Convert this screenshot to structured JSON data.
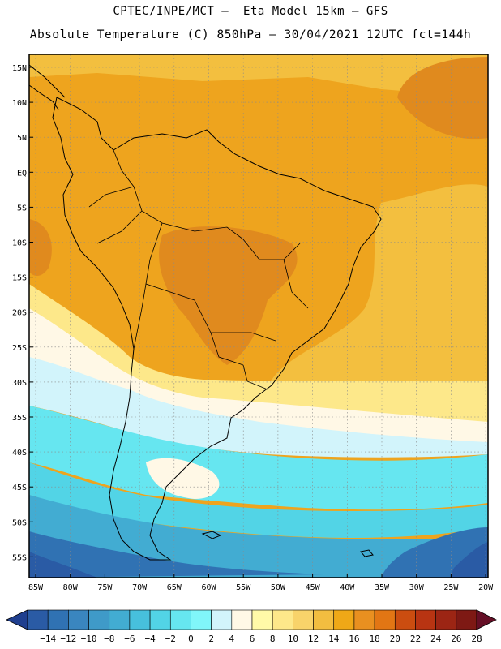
{
  "header": {
    "line1": "CPTEC/INPE/MCT –  Eta Model 15km – GFS",
    "line2": "Absolute Temperature (C) 850hPa – 30/04/2021 12UTC fct=144h"
  },
  "axes": {
    "lat_labels": [
      "15N",
      "10N",
      "5N",
      "EQ",
      "5S",
      "10S",
      "15S",
      "20S",
      "25S",
      "30S",
      "35S",
      "40S",
      "45S",
      "50S",
      "55S"
    ],
    "lon_labels": [
      "85W",
      "80W",
      "75W",
      "70W",
      "65W",
      "60W",
      "55W",
      "50W",
      "45W",
      "40W",
      "35W",
      "30W",
      "25W",
      "20W"
    ]
  },
  "colorbar": {
    "labels": [
      "-14",
      "-12",
      "-10",
      "-8",
      "-6",
      "-4",
      "-2",
      "0",
      "2",
      "4",
      "6",
      "8",
      "10",
      "12",
      "14",
      "16",
      "18",
      "20",
      "22",
      "24",
      "26",
      "28"
    ],
    "colors": [
      "#1f3f8f",
      "#2a5ba5",
      "#3072b3",
      "#3a86bf",
      "#3f9ac8",
      "#42acd2",
      "#47c0dc",
      "#52d4e6",
      "#66e6f0",
      "#80f6fa",
      "#d2f4fb",
      "#fff8e6",
      "#fffaa8",
      "#fde88a",
      "#f8d36a",
      "#f2bd40",
      "#efa817",
      "#e99020",
      "#e27614",
      "#cb4d10",
      "#b83412",
      "#9c2514",
      "#7e1914",
      "#650f26"
    ]
  },
  "colors": {
    "warm_dark": "#e08a1e",
    "warm": "#eea41e",
    "yellow": "#f3bf3f",
    "pale_yellow": "#fde88a",
    "cream": "#fff8e6",
    "ice": "#d2f4fb",
    "cyan": "#66e6f0",
    "turquoise": "#52d4e6",
    "sky": "#42acd2",
    "blue": "#3072b3",
    "navy": "#2a5ba5"
  }
}
